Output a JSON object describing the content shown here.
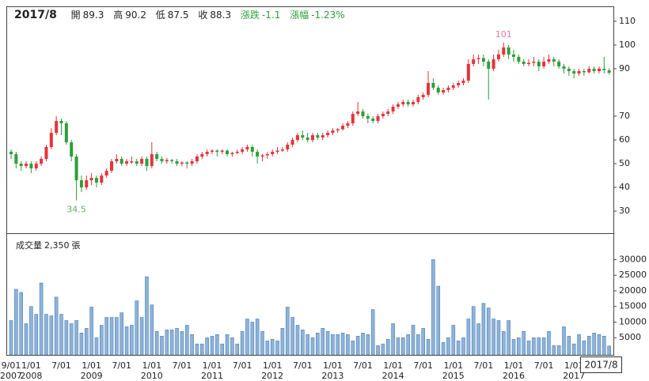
{
  "chart_data": {
    "type": "candlestick",
    "x": [
      "2007/9",
      "2007/10",
      "2007/11",
      "2007/12",
      "2008/1",
      "2008/2",
      "2008/3",
      "2008/4",
      "2008/5",
      "2008/6",
      "2008/7",
      "2008/8",
      "2008/9",
      "2008/10",
      "2008/11",
      "2008/12",
      "2009/1",
      "2009/2",
      "2009/3",
      "2009/4",
      "2009/5",
      "2009/6",
      "2009/7",
      "2009/8",
      "2009/9",
      "2009/10",
      "2009/11",
      "2009/12",
      "2010/1",
      "2010/2",
      "2010/3",
      "2010/4",
      "2010/5",
      "2010/6",
      "2010/7",
      "2010/8",
      "2010/9",
      "2010/10",
      "2010/11",
      "2010/12",
      "2011/1",
      "2011/2",
      "2011/3",
      "2011/4",
      "2011/5",
      "2011/6",
      "2011/7",
      "2011/8",
      "2011/9",
      "2011/10",
      "2011/11",
      "2011/12",
      "2012/1",
      "2012/2",
      "2012/3",
      "2012/4",
      "2012/5",
      "2012/6",
      "2012/7",
      "2012/8",
      "2012/9",
      "2012/10",
      "2012/11",
      "2012/12",
      "2013/1",
      "2013/2",
      "2013/3",
      "2013/4",
      "2013/5",
      "2013/6",
      "2013/7",
      "2013/8",
      "2013/9",
      "2013/10",
      "2013/11",
      "2013/12",
      "2014/1",
      "2014/2",
      "2014/3",
      "2014/4",
      "2014/5",
      "2014/6",
      "2014/7",
      "2014/8",
      "2014/9",
      "2014/10",
      "2014/11",
      "2014/12",
      "2015/1",
      "2015/2",
      "2015/3",
      "2015/4",
      "2015/5",
      "2015/6",
      "2015/7",
      "2015/8",
      "2015/9",
      "2015/10",
      "2015/11",
      "2015/12",
      "2016/1",
      "2016/2",
      "2016/3",
      "2016/4",
      "2016/5",
      "2016/6",
      "2016/7",
      "2016/8",
      "2016/9",
      "2016/10",
      "2016/11",
      "2016/12",
      "2017/1",
      "2017/2",
      "2017/3",
      "2017/4",
      "2017/5",
      "2017/6",
      "2017/7",
      "2017/8"
    ],
    "open": [
      55,
      54,
      50,
      49,
      50,
      48,
      50,
      52,
      57,
      63,
      68,
      67,
      59,
      53,
      43,
      40,
      43,
      44,
      42,
      45,
      47,
      51,
      52,
      50,
      50.5,
      51,
      50,
      52,
      49,
      54,
      52,
      51,
      51.5,
      51,
      50,
      50.5,
      50,
      51,
      53,
      54,
      55,
      55.5,
      55,
      55.5,
      54,
      54.5,
      55,
      56,
      57,
      55,
      53,
      53.5,
      54,
      55,
      55.5,
      56,
      58,
      60,
      62,
      61,
      60,
      62,
      61,
      62,
      63,
      64,
      64.5,
      66,
      67,
      71,
      72,
      70,
      69,
      68,
      70,
      71,
      72,
      74,
      75,
      76,
      75,
      76,
      78,
      79,
      84,
      82,
      80,
      81,
      82,
      83,
      84,
      85,
      92,
      94,
      94.5,
      93,
      90,
      94,
      96,
      99,
      96,
      95,
      93,
      92,
      92.5,
      93,
      91,
      93,
      94,
      93,
      91,
      90,
      89,
      88,
      89,
      88.5,
      90,
      89,
      90,
      89.3
    ],
    "high": [
      56,
      55,
      51,
      51,
      51,
      51,
      53,
      58,
      65,
      70,
      69,
      68,
      60,
      54,
      45,
      45,
      46,
      45,
      46,
      48,
      52,
      54,
      53,
      52,
      53,
      52,
      53,
      53,
      59,
      55,
      53,
      52.5,
      52,
      52,
      51,
      51,
      52,
      54,
      55,
      56,
      56,
      56,
      56,
      56,
      55,
      56,
      57,
      58,
      58,
      56,
      54,
      55,
      56,
      57,
      57,
      59,
      61,
      63,
      64,
      63,
      63,
      63,
      63,
      64,
      65,
      65,
      67,
      68,
      72,
      76,
      73,
      71,
      70,
      71,
      72,
      73,
      75,
      76,
      77,
      77,
      77,
      79,
      80,
      89,
      86,
      83,
      82,
      83,
      84,
      85,
      86,
      94,
      96,
      96,
      96,
      94,
      96,
      98,
      101,
      100,
      98,
      96,
      94,
      94,
      95,
      94,
      95,
      96,
      95,
      94,
      92,
      91,
      90,
      90,
      90,
      91,
      91,
      91,
      95,
      90.2
    ],
    "low": [
      52,
      48,
      47,
      48,
      46,
      47,
      49,
      51,
      56,
      62,
      62,
      58,
      51,
      34.5,
      38,
      39,
      41,
      40,
      41,
      44,
      46,
      50,
      49,
      49,
      50,
      49,
      49,
      47,
      48,
      51,
      50,
      50,
      50,
      49,
      49,
      48,
      49,
      50,
      52,
      53,
      54,
      53,
      54,
      53,
      53,
      54,
      54,
      55,
      53,
      50,
      51,
      52,
      53,
      54,
      55,
      55,
      57,
      59,
      60,
      59,
      59,
      60,
      60,
      61,
      62,
      63,
      64,
      65,
      66,
      70,
      69,
      67,
      67,
      67,
      69,
      70,
      71,
      73,
      74,
      74,
      74,
      75,
      77,
      78,
      81,
      79,
      79,
      80,
      81,
      82,
      83,
      84,
      91,
      92,
      91,
      77,
      89,
      93,
      95,
      94,
      93,
      92,
      91,
      91,
      91,
      89,
      90,
      92,
      91,
      90,
      88,
      87,
      86,
      87,
      87,
      88,
      88,
      88,
      88,
      87.5
    ],
    "close": [
      54,
      50,
      49,
      50,
      48,
      50,
      52,
      57,
      63,
      68,
      67,
      59,
      53,
      43,
      40,
      43,
      44,
      42,
      45,
      47,
      51,
      52,
      50,
      51,
      51,
      50,
      52,
      49,
      54,
      52,
      51,
      51.5,
      51,
      50,
      50.5,
      50,
      51,
      53,
      54,
      55,
      55.5,
      55,
      55.5,
      54,
      54.5,
      55,
      56,
      57,
      55,
      53,
      53.5,
      54,
      55,
      55.5,
      56,
      58,
      60,
      62,
      61,
      60,
      62,
      61,
      62,
      63,
      64,
      64.5,
      66,
      67,
      71,
      72,
      70,
      69,
      68,
      70,
      71,
      72,
      74,
      75,
      76,
      75,
      76,
      78,
      79,
      84,
      82,
      80,
      81,
      82,
      83,
      84,
      85,
      92,
      94,
      94.5,
      93,
      90,
      94,
      96,
      99,
      96,
      95,
      93,
      92,
      92.5,
      93,
      91,
      93,
      94,
      93,
      91,
      90,
      89,
      88,
      89,
      88.5,
      90,
      89,
      90,
      89.4,
      88.3
    ],
    "volumes": [
      10500,
      20500,
      19500,
      9500,
      15000,
      12500,
      22500,
      12500,
      12000,
      18000,
      12500,
      10500,
      9500,
      10500,
      6500,
      8000,
      14800,
      5000,
      9000,
      11500,
      11500,
      11500,
      13000,
      8500,
      9000,
      16800,
      11500,
      24500,
      15500,
      7000,
      5500,
      7500,
      7500,
      8000,
      7000,
      9000,
      6000,
      3000,
      3000,
      5000,
      5500,
      6000,
      3000,
      6000,
      5000,
      3000,
      7000,
      11000,
      10000,
      11000,
      7000,
      4000,
      4500,
      4000,
      8000,
      14800,
      11500,
      9000,
      7500,
      6000,
      5000,
      6500,
      8000,
      7000,
      6000,
      6000,
      6500,
      6000,
      4000,
      5500,
      6500,
      6000,
      14000,
      2500,
      3000,
      4500,
      9500,
      5000,
      5000,
      6000,
      9000,
      6000,
      8000,
      4500,
      30000,
      21500,
      3500,
      5000,
      9000,
      4000,
      5000,
      11000,
      15000,
      9500,
      16000,
      14500,
      11000,
      10500,
      7000,
      10500,
      4500,
      5000,
      7000,
      4000,
      5000,
      5000,
      5000,
      7000,
      2500,
      2500,
      8500,
      5500,
      3000,
      6000,
      4000,
      5500,
      6500,
      6000,
      5500,
      2350
    ],
    "up_color": "#e4343c",
    "down_color": "#2f9e3a",
    "volume_color": "#8db3da",
    "volume_edge_color": "#4f7fb0",
    "ylim": [
      20.7,
      116.3
    ],
    "yticks": [
      30,
      40,
      50,
      60,
      70,
      90,
      100,
      110
    ],
    "y2lim": [
      0,
      38200
    ],
    "y2ticks": [
      5000,
      10000,
      15000,
      20000,
      25000,
      30000
    ],
    "xticks": [
      {
        "value": "2007/9",
        "label": "9/01"
      },
      {
        "value": "2008/1",
        "label": "1/01"
      },
      {
        "value": "2008/7",
        "label": "7/01"
      },
      {
        "value": "2009/1",
        "label": "1/01"
      },
      {
        "value": "2009/7",
        "label": "7/01"
      },
      {
        "value": "2010/1",
        "label": "1/01"
      },
      {
        "value": "2010/7",
        "label": "7/01"
      },
      {
        "value": "2011/1",
        "label": "1/01"
      },
      {
        "value": "2011/7",
        "label": "7/01"
      },
      {
        "value": "2012/1",
        "label": "1/01"
      },
      {
        "value": "2012/7",
        "label": "7/01"
      },
      {
        "value": "2013/1",
        "label": "1/01"
      },
      {
        "value": "2013/7",
        "label": "7/01"
      },
      {
        "value": "2014/1",
        "label": "1/01"
      },
      {
        "value": "2014/7",
        "label": "7/01"
      },
      {
        "value": "2015/1",
        "label": "1/01"
      },
      {
        "value": "2015/7",
        "label": "7/01"
      },
      {
        "value": "2016/1",
        "label": "1/01"
      },
      {
        "value": "2016/7",
        "label": "7/01"
      },
      {
        "value": "2017/1",
        "label": "1/01"
      }
    ],
    "xyears": [
      {
        "value": "2007/9",
        "label": "2007"
      },
      {
        "value": "2008/1",
        "label": "2008"
      },
      {
        "value": "2009/1",
        "label": "2009"
      },
      {
        "value": "2010/1",
        "label": "2010"
      },
      {
        "value": "2011/1",
        "label": "2011"
      },
      {
        "value": "2012/1",
        "label": "2012"
      },
      {
        "value": "2013/1",
        "label": "2013"
      },
      {
        "value": "2014/1",
        "label": "2014"
      },
      {
        "value": "2015/1",
        "label": "2015"
      },
      {
        "value": "2016/1",
        "label": "2016"
      },
      {
        "value": "2017/1",
        "label": "2017"
      }
    ],
    "annotations": [
      {
        "x": "2015/11",
        "value": 101,
        "color": "#e07aa8"
      },
      {
        "x": "2008/10",
        "value": 34.5,
        "color": "#6aa86a"
      }
    ],
    "readout": {
      "open_label": "開",
      "high_label": "高",
      "low_label": "低",
      "close_label": "收",
      "change_label": "漲跌",
      "change": -1.1,
      "change_pct_label": "漲幅",
      "change_pct": {
        "value": -1.23,
        "label": "-1.23%"
      },
      "change_color": "#2f9e3a"
    },
    "volume_title": "成交量",
    "volume_readout": {
      "value": 2350,
      "label": "2,350"
    },
    "volume_unit": "張"
  }
}
